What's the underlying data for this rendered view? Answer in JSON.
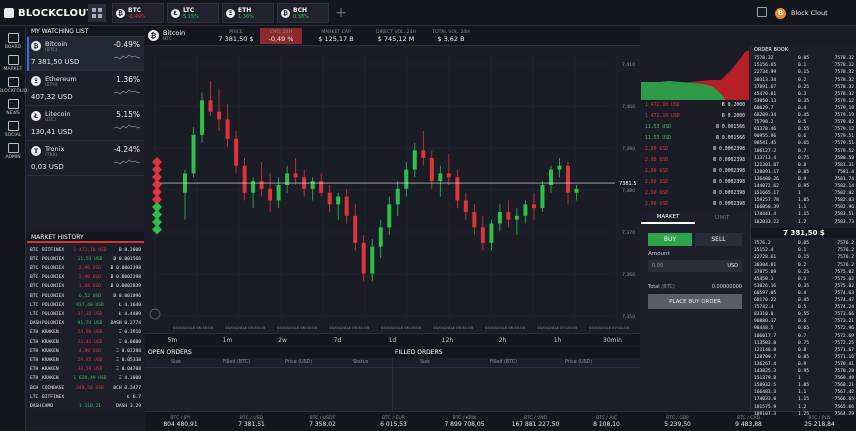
{
  "brand": "BLOCKCLOUT",
  "top_tickers": [
    {
      "icon": "₿",
      "sym": "BTC",
      "chg": "-0.49%",
      "color": "#e0343c"
    },
    {
      "icon": "Ł",
      "sym": "LTC",
      "chg": "5.15%",
      "color": "#3fbf5a"
    },
    {
      "icon": "Ξ",
      "sym": "ETH",
      "chg": "1.36%",
      "color": "#3fbf5a"
    },
    {
      "icon": "₿",
      "sym": "BCH",
      "chg": "0.38%",
      "color": "#3fbf5a"
    }
  ],
  "user": {
    "avatar": "B",
    "name": "Block Clout"
  },
  "sidebar": [
    {
      "label": "BOARD"
    },
    {
      "label": "MARKET"
    },
    {
      "label": "BLOCKFOLIO"
    },
    {
      "label": "NEWS"
    },
    {
      "label": "SOCIAL"
    },
    {
      "label": "ADMIN"
    }
  ],
  "watch": {
    "title": "MY WATCHING LIST",
    "items": [
      {
        "icon": "₿",
        "name": "Bitcoin",
        "sub": "(BTC)",
        "price": "7 381,50 USD",
        "chg": "-0.49%"
      },
      {
        "icon": "Ξ",
        "name": "Ethereum",
        "sub": "(ETH)",
        "price": "407,32 USD",
        "chg": "1.36%"
      },
      {
        "icon": "Ł",
        "name": "Litecoin",
        "sub": "(LTC)",
        "price": "130,41 USD",
        "chg": "5.15%"
      },
      {
        "icon": "T",
        "name": "Tronix",
        "sub": "(TRX)",
        "price": "0,03 USD",
        "chg": "-4.24%"
      }
    ]
  },
  "history": {
    "title": "MARKET HISTORY",
    "rows": [
      {
        "c": "BTC",
        "ex": "BITFINEX",
        "p": "1 472,10 USD",
        "a": "Ƀ 0.2000",
        "col": "r"
      },
      {
        "c": "BTC",
        "ex": "POLONIEX",
        "p": "11,53 USD",
        "a": "Ƀ 0.001566",
        "col": "g"
      },
      {
        "c": "BTC",
        "ex": "POLONIEX",
        "p": "2,90 USD",
        "a": "Ƀ 0.0002398",
        "col": "r"
      },
      {
        "c": "BTC",
        "ex": "POLONIEX",
        "p": "2,90 USD",
        "a": "Ƀ 0.0002398",
        "col": "r"
      },
      {
        "c": "BTC",
        "ex": "POLONIEX",
        "p": "1,58 USD",
        "a": "Ƀ 0.0002039",
        "col": "r"
      },
      {
        "c": "BTC",
        "ex": "POLONIEX",
        "p": "6,52 USD",
        "a": "Ƀ 0.001096",
        "col": "g"
      },
      {
        "c": "LTC",
        "ex": "POLONIEX",
        "p": "937,40 USD",
        "a": "Ł 4.1640",
        "col": "g"
      },
      {
        "c": "LTC",
        "ex": "POLONIEX",
        "p": "37,32 USD",
        "a": "Ł 4.4489",
        "col": "r"
      },
      {
        "c": "DASH",
        "ex": "POLONIEX",
        "p": "91,74 USD",
        "a": "DASH 0.2774",
        "col": "g"
      },
      {
        "c": "ETH",
        "ex": "KRAKEN",
        "p": "24,90 USD",
        "a": "Ξ 0.3910",
        "col": "r"
      },
      {
        "c": "ETH",
        "ex": "KRAKEN",
        "p": "23,41 USD",
        "a": "Ξ 0.0880",
        "col": "r"
      },
      {
        "c": "ETH",
        "ex": "KRAKEN",
        "p": "4,80 USD",
        "a": "Ξ 0.02288",
        "col": "r"
      },
      {
        "c": "ETH",
        "ex": "KRAKEN",
        "p": "29,45 USD",
        "a": "Ξ 0.05338",
        "col": "r"
      },
      {
        "c": "ETH",
        "ex": "KRAKEN",
        "p": "34,59 USD",
        "a": "Ξ 0.04708",
        "col": "r"
      },
      {
        "c": "ETH",
        "ex": "KRAKEN",
        "p": "1 629,49 USD",
        "a": "Ξ 4.1000",
        "col": "g"
      },
      {
        "c": "BCH",
        "ex": "COINBASE",
        "p": "240,58 USD",
        "a": "BCH 0.3477",
        "col": "r"
      },
      {
        "c": "LTC",
        "ex": "BITFINEX",
        "p": "",
        "a": "Ł 6.7",
        "col": "g"
      },
      {
        "c": "DASH",
        "ex": "EXMO",
        "p": "1 110,21",
        "a": "DASH 3.29",
        "col": "g"
      }
    ]
  },
  "header": {
    "coin": "Bitcoin",
    "coin_sub": "BTC",
    "cells": [
      {
        "k": "PRICE",
        "v": "7 381,50 $"
      },
      {
        "k": "CHG. 24H",
        "v": "-0,49 %"
      },
      {
        "k": "MARKET CAP",
        "v": "$ 125,17 B"
      },
      {
        "k": "DIRECT VOL. 24H",
        "v": "$ 745,12 M"
      },
      {
        "k": "TOTAL VOL. 24H",
        "v": "$ 3,62 B"
      }
    ]
  },
  "chart_data": {
    "type": "candlestick",
    "y_ticks": [
      "7,410",
      "7,400",
      "7,390",
      "7,380",
      "7,370",
      "7,360",
      "7,350"
    ],
    "current_price_label": "7381.5",
    "x_ticks": [
      "04/04/2018 06:35:00",
      "04/04/2018 05:50:00",
      "04/04/2018 06:00:00",
      "04/04/2018 06:51:00",
      "04/04/2018 06:25:00",
      "04/04/2018 06:51:00",
      "04/04/2018 06:55:00",
      "04/04/2018 07:00:00",
      "04/04/2018 07:01:00"
    ],
    "ylim": [
      7347,
      7415
    ],
    "current_price": 7381.5,
    "candles": [
      [
        7379,
        7385,
        7372,
        7384
      ],
      [
        7384,
        7396,
        7383,
        7394
      ],
      [
        7394,
        7405,
        7392,
        7403
      ],
      [
        7403,
        7408,
        7399,
        7400
      ],
      [
        7400,
        7406,
        7395,
        7398
      ],
      [
        7398,
        7402,
        7391,
        7393
      ],
      [
        7393,
        7395,
        7384,
        7386
      ],
      [
        7386,
        7388,
        7377,
        7379
      ],
      [
        7379,
        7383,
        7375,
        7382
      ],
      [
        7382,
        7387,
        7378,
        7380
      ],
      [
        7380,
        7384,
        7374,
        7377
      ],
      [
        7377,
        7383,
        7375,
        7381
      ],
      [
        7381,
        7386,
        7379,
        7384
      ],
      [
        7384,
        7388,
        7381,
        7383
      ],
      [
        7383,
        7385,
        7378,
        7380
      ],
      [
        7380,
        7383,
        7377,
        7382
      ],
      [
        7382,
        7384,
        7378,
        7379
      ],
      [
        7379,
        7381,
        7374,
        7376
      ],
      [
        7376,
        7379,
        7372,
        7378
      ],
      [
        7378,
        7380,
        7371,
        7373
      ],
      [
        7373,
        7376,
        7364,
        7366
      ],
      [
        7366,
        7368,
        7356,
        7358
      ],
      [
        7358,
        7367,
        7356,
        7365
      ],
      [
        7365,
        7372,
        7362,
        7370
      ],
      [
        7370,
        7378,
        7368,
        7376
      ],
      [
        7376,
        7382,
        7373,
        7380
      ],
      [
        7380,
        7387,
        7378,
        7385
      ],
      [
        7385,
        7392,
        7383,
        7390
      ],
      [
        7390,
        7395,
        7386,
        7388
      ],
      [
        7388,
        7390,
        7380,
        7382
      ],
      [
        7382,
        7386,
        7378,
        7384
      ],
      [
        7384,
        7389,
        7381,
        7383
      ],
      [
        7383,
        7385,
        7375,
        7377
      ],
      [
        7377,
        7379,
        7372,
        7374
      ],
      [
        7374,
        7376,
        7368,
        7370
      ],
      [
        7370,
        7373,
        7364,
        7366
      ],
      [
        7366,
        7372,
        7364,
        7371
      ],
      [
        7371,
        7376,
        7369,
        7374
      ],
      [
        7374,
        7377,
        7370,
        7372
      ],
      [
        7372,
        7375,
        7368,
        7373
      ],
      [
        7373,
        7377,
        7371,
        7376
      ],
      [
        7376,
        7379,
        7372,
        7375
      ],
      [
        7375,
        7382,
        7374,
        7381
      ],
      [
        7381,
        7386,
        7379,
        7385
      ],
      [
        7385,
        7388,
        7383,
        7386
      ],
      [
        7386,
        7387,
        7376,
        7379
      ],
      [
        7379,
        7381,
        7377,
        7380
      ]
    ]
  },
  "timeframes": [
    "5m",
    "1m",
    "2w",
    "7d",
    "1d",
    "12h",
    "2h",
    "1h",
    "30min"
  ],
  "orders": {
    "open_title": "OPEN ORDERS",
    "filled_title": "FILLED ORDERS",
    "cols": [
      "Size",
      "Filled (BTC)",
      "Price (USD)",
      "Status",
      "Size",
      "Filled (BTC)",
      "Price (USD)"
    ]
  },
  "bottom_ticker": [
    {
      "k": "BTC / JPY",
      "v": "804 480,91"
    },
    {
      "k": "BTC / USD",
      "v": "7 381,51"
    },
    {
      "k": "BTC / USDT",
      "v": "7 358,02"
    },
    {
      "k": "BTC / EUR",
      "v": "6 015,53"
    },
    {
      "k": "BTC / KRW",
      "v": "7 899 708,05"
    },
    {
      "k": "BTC / VND",
      "v": "167 881 227,50"
    },
    {
      "k": "BTC / AIC",
      "v": "8 108,10"
    },
    {
      "k": "BTC / GBP",
      "v": "5 239,50"
    },
    {
      "k": "BTC / CAD",
      "v": "9 483,88"
    },
    {
      "k": "BTC / PLN",
      "v": "25 218,84"
    }
  ],
  "bids": [
    {
      "p": "1 472,10 USD",
      "a": "Ƀ 0.2000",
      "col": "r"
    },
    {
      "p": "1 472,10 USD",
      "a": "Ƀ 0.2000",
      "col": "r"
    },
    {
      "p": "11,53 USD",
      "a": "Ƀ 0.001566",
      "col": "g"
    },
    {
      "p": "11,53 USD",
      "a": "Ƀ 0.001566",
      "col": "g"
    },
    {
      "p": "2,90 USD",
      "a": "Ƀ 0.0002398",
      "col": "r"
    },
    {
      "p": "2,90 USD",
      "a": "Ƀ 0.0002398",
      "col": "r"
    },
    {
      "p": "2,90 USD",
      "a": "Ƀ 0.0002398",
      "col": "r"
    },
    {
      "p": "2,90 USD",
      "a": "Ƀ 0.0002398",
      "col": "r"
    },
    {
      "p": "2,90 USD",
      "a": "Ƀ 0.0002398",
      "col": "r"
    },
    {
      "p": "2,90 USD",
      "a": "Ƀ 0.0002398",
      "col": "r"
    }
  ],
  "form": {
    "tab_market": "MARKET",
    "tab_limit": "LIMIT",
    "buy": "BUY",
    "sell": "SELL",
    "amount_label": "Amount",
    "amount_placeholder": "0.00",
    "amount_unit": "USD",
    "total_label": "Total",
    "total_unit": "(BTC)",
    "total_value": "0.00000000",
    "place": "PLACE BUY ORDER"
  },
  "book": {
    "title": "ORDER BOOK",
    "mid": "7 381,50 $",
    "asks": [
      [
        "7578.32",
        "0.05",
        "7578.32"
      ],
      [
        "15156.65",
        "0.1",
        "7578.32"
      ],
      [
        "22734.99",
        "0.15",
        "7578.32"
      ],
      [
        "30313.34",
        "0.2",
        "7578.32"
      ],
      [
        "37891.67",
        "0.25",
        "7578.32"
      ],
      [
        "45470.01",
        "0.3",
        "7578.32"
      ],
      [
        "53050.13",
        "0.35",
        "7579.12"
      ],
      [
        "60629.7",
        "0.4",
        "7579.18"
      ],
      [
        "68209.34",
        "0.45",
        "7579.19"
      ],
      [
        "75790.2",
        "0.5",
        "7579.02"
      ],
      [
        "83370.46",
        "0.55",
        "7579.12"
      ],
      [
        "90955.96",
        "0.6",
        "7579.51"
      ],
      [
        "98541.45",
        "0.65",
        "7579.51"
      ],
      [
        "106127.2",
        "0.7",
        "7579.52"
      ],
      [
        "113713.4",
        "0.75",
        "7580.58"
      ],
      [
        "121301.87",
        "0.8",
        "7581.31"
      ],
      [
        "128891.17",
        "0.85",
        "7581.4"
      ],
      [
        "136480.26",
        "0.9",
        "7581.74"
      ],
      [
        "144072.62",
        "0.95",
        "7582.14"
      ],
      [
        "151665.17",
        "1",
        "7582.82"
      ],
      [
        "159257.78",
        "1.05",
        "7582.83"
      ],
      [
        "166850.39",
        "1.1",
        "7582.96"
      ],
      [
        "174441.4",
        "1.15",
        "7583.51"
      ],
      [
        "182033.22",
        "1.2",
        "7583.73"
      ]
    ],
    "bids": [
      [
        "7576.2",
        "0.05",
        "7576.2"
      ],
      [
        "15152.4",
        "0.1",
        "7576.2"
      ],
      [
        "22728.61",
        "0.15",
        "7576.2"
      ],
      [
        "30304.81",
        "0.2",
        "7576.2"
      ],
      [
        "37875.09",
        "0.25",
        "7575.02"
      ],
      [
        "45450.1",
        "0.3",
        "7575.02"
      ],
      [
        "53026.16",
        "0.35",
        "7575.02"
      ],
      [
        "60597.05",
        "0.4",
        "7574.63"
      ],
      [
        "68170.22",
        "0.45",
        "7574.47"
      ],
      [
        "75742.4",
        "0.5",
        "7574.24"
      ],
      [
        "83310.0",
        "0.55",
        "7573.66"
      ],
      [
        "90880.17",
        "0.6",
        "7573.21"
      ],
      [
        "98448.5",
        "0.65",
        "7572.96"
      ],
      [
        "106017.7",
        "0.7",
        "7572.69"
      ],
      [
        "113583.8",
        "0.75",
        "7572.25"
      ],
      [
        "121146.8",
        "0.8",
        "7571.67"
      ],
      [
        "128709.7",
        "0.85",
        "7571.16"
      ],
      [
        "136267.4",
        "0.9",
        "7570.41"
      ],
      [
        "143825.3",
        "0.95",
        "7570.28"
      ],
      [
        "151379.8",
        "1",
        "7569.49"
      ],
      [
        "158932.5",
        "1.05",
        "7568.21"
      ],
      [
        "166483.3",
        "1.1",
        "7567.42"
      ],
      [
        "174033.0",
        "1.15",
        "7566.65"
      ],
      [
        "181575.9",
        "1.2",
        "7565.66"
      ],
      [
        "189107.3",
        "1.25",
        "7564.29"
      ]
    ]
  }
}
